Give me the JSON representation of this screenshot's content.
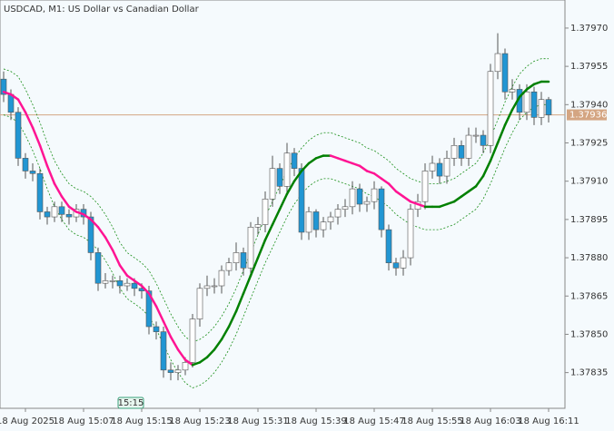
{
  "chart_data": {
    "type": "candlestick",
    "title": "USDCAD, M1:  US Dollar vs Canadian Dollar",
    "time_marker": "15:15",
    "categories": [
      null,
      null,
      null,
      "18 Aug 2025",
      null,
      null,
      null,
      null,
      null,
      null,
      null,
      "18 Aug 15:07",
      null,
      null,
      null,
      null,
      null,
      null,
      null,
      "18 Aug 15:15",
      null,
      null,
      null,
      null,
      null,
      null,
      null,
      "18 Aug 15:23",
      null,
      null,
      null,
      null,
      null,
      null,
      null,
      "18 Aug 15:31",
      null,
      null,
      null,
      null,
      null,
      null,
      null,
      "18 Aug 15:39",
      null,
      null,
      null,
      null,
      null,
      null,
      null,
      "18 Aug 15:47",
      null,
      null,
      null,
      null,
      null,
      null,
      null,
      "18 Aug 15:55",
      null,
      null,
      null,
      null,
      null,
      null,
      null,
      "18 Aug 16:03",
      null,
      null,
      null,
      null,
      null,
      null,
      null,
      "18 Aug 16:11"
    ],
    "open": [
      1.3795,
      1.37944,
      1.37937,
      1.37919,
      1.37914,
      1.37913,
      1.37898,
      1.37896,
      1.379,
      1.37897,
      1.37896,
      1.37899,
      1.37896,
      1.37882,
      1.3787,
      1.37871,
      1.37871,
      1.37869,
      1.3787,
      1.37868,
      1.37867,
      1.37853,
      1.37851,
      1.37836,
      1.37835,
      1.37836,
      1.37839,
      1.37856,
      1.37868,
      1.37869,
      1.37869,
      1.37875,
      1.37878,
      1.37882,
      1.37876,
      1.37892,
      1.37893,
      1.37903,
      1.37915,
      1.37908,
      1.37921,
      1.37915,
      1.3789,
      1.37898,
      1.37891,
      1.37894,
      1.37896,
      1.37899,
      1.379,
      1.37907,
      1.37901,
      1.37902,
      1.37907,
      1.37891,
      1.37878,
      1.37876,
      1.3788,
      1.37899,
      1.37902,
      1.37914,
      1.37917,
      1.37912,
      1.37919,
      1.37924,
      1.37919,
      1.37928,
      1.37928,
      1.37924,
      1.37953,
      1.3796,
      1.37945,
      1.37946,
      1.37937,
      1.37945,
      1.37935,
      1.37942
    ],
    "high": [
      1.37953,
      1.37946,
      1.37939,
      1.37921,
      1.37917,
      1.37915,
      1.379,
      1.37902,
      1.37902,
      1.37899,
      1.37901,
      1.37901,
      1.37898,
      1.37884,
      1.37874,
      1.37873,
      1.37873,
      1.37872,
      1.37872,
      1.3787,
      1.37869,
      1.37855,
      1.37853,
      1.37839,
      1.37838,
      1.37841,
      1.37858,
      1.3787,
      1.37873,
      1.37872,
      1.37877,
      1.3788,
      1.37886,
      1.37884,
      1.37894,
      1.37896,
      1.37906,
      1.3792,
      1.37917,
      1.37925,
      1.37923,
      1.37917,
      1.379,
      1.37899,
      1.37896,
      1.37898,
      1.37901,
      1.37903,
      1.3791,
      1.37909,
      1.37904,
      1.3791,
      1.37908,
      1.37893,
      1.3788,
      1.37883,
      1.37901,
      1.37905,
      1.37917,
      1.3792,
      1.37919,
      1.37922,
      1.37927,
      1.37926,
      1.37931,
      1.37931,
      1.3793,
      1.37956,
      1.37968,
      1.37962,
      1.3795,
      1.37948,
      1.37948,
      1.37947,
      1.37945,
      1.37943
    ],
    "low": [
      1.37941,
      1.37934,
      1.37916,
      1.37911,
      1.3791,
      1.37895,
      1.37893,
      1.37894,
      1.37894,
      1.37893,
      1.37894,
      1.37893,
      1.37879,
      1.37867,
      1.37868,
      1.37868,
      1.37866,
      1.37867,
      1.37865,
      1.37864,
      1.3785,
      1.37848,
      1.37833,
      1.37832,
      1.37832,
      1.37834,
      1.37837,
      1.37853,
      1.37865,
      1.37866,
      1.37866,
      1.37873,
      1.37875,
      1.37873,
      1.37873,
      1.37889,
      1.3789,
      1.379,
      1.37905,
      1.37905,
      1.37912,
      1.37887,
      1.37887,
      1.37888,
      1.37888,
      1.37891,
      1.37893,
      1.37896,
      1.37897,
      1.37898,
      1.37898,
      1.37899,
      1.37888,
      1.37875,
      1.37873,
      1.37873,
      1.37877,
      1.37896,
      1.37899,
      1.37911,
      1.37909,
      1.37909,
      1.37916,
      1.37916,
      1.37916,
      1.37925,
      1.37921,
      1.37921,
      1.3795,
      1.37942,
      1.37942,
      1.37934,
      1.37934,
      1.37932,
      1.37932,
      1.37933
    ],
    "close": [
      1.37944,
      1.37937,
      1.37919,
      1.37914,
      1.37913,
      1.37898,
      1.37896,
      1.379,
      1.37897,
      1.37896,
      1.37899,
      1.37896,
      1.37882,
      1.3787,
      1.37871,
      1.37871,
      1.37869,
      1.3787,
      1.37868,
      1.37867,
      1.37853,
      1.37851,
      1.37836,
      1.37835,
      1.37836,
      1.37839,
      1.37856,
      1.37868,
      1.37869,
      1.37869,
      1.37875,
      1.37878,
      1.37882,
      1.37876,
      1.37892,
      1.37893,
      1.37903,
      1.37915,
      1.37908,
      1.37921,
      1.37915,
      1.3789,
      1.37898,
      1.37891,
      1.37894,
      1.37896,
      1.37899,
      1.379,
      1.37907,
      1.37901,
      1.37902,
      1.37907,
      1.37891,
      1.37878,
      1.37876,
      1.3788,
      1.37899,
      1.37902,
      1.37914,
      1.37917,
      1.37912,
      1.37919,
      1.37924,
      1.37919,
      1.37928,
      1.37928,
      1.37924,
      1.37953,
      1.3796,
      1.37945,
      1.37946,
      1.37937,
      1.37945,
      1.37935,
      1.37942,
      1.37936
    ],
    "middle": [
      1.37945,
      1.37944,
      1.37942,
      1.37937,
      1.37931,
      1.37924,
      1.37916,
      1.37909,
      1.37904,
      1.379,
      1.37898,
      1.37897,
      1.37895,
      1.37892,
      1.37888,
      1.37883,
      1.37877,
      1.37873,
      1.37871,
      1.37869,
      1.37866,
      1.37861,
      1.37855,
      1.37849,
      1.37844,
      1.3784,
      1.37838,
      1.37839,
      1.37841,
      1.37844,
      1.37848,
      1.37853,
      1.37859,
      1.37866,
      1.37873,
      1.3788,
      1.37887,
      1.37893,
      1.37899,
      1.37905,
      1.3791,
      1.37914,
      1.37917,
      1.37919,
      1.3792,
      1.3792,
      1.37919,
      1.37918,
      1.37917,
      1.37916,
      1.37914,
      1.37913,
      1.37911,
      1.37909,
      1.37906,
      1.37904,
      1.37902,
      1.37901,
      1.379,
      1.379,
      1.379,
      1.37901,
      1.37902,
      1.37904,
      1.37906,
      1.37908,
      1.37912,
      1.37918,
      1.37925,
      1.37932,
      1.37938,
      1.37943,
      1.37946,
      1.37948,
      1.37949,
      1.37949
    ],
    "upper": [
      1.37954,
      1.37953,
      1.37951,
      1.37946,
      1.3794,
      1.37933,
      1.37925,
      1.37918,
      1.37913,
      1.37909,
      1.37907,
      1.37906,
      1.37904,
      1.37901,
      1.37897,
      1.37892,
      1.37886,
      1.37882,
      1.3788,
      1.37878,
      1.37875,
      1.3787,
      1.37864,
      1.37858,
      1.37853,
      1.37849,
      1.37847,
      1.37848,
      1.3785,
      1.37853,
      1.37857,
      1.37862,
      1.37868,
      1.37875,
      1.37882,
      1.37889,
      1.37896,
      1.37902,
      1.37908,
      1.37914,
      1.37919,
      1.37923,
      1.37926,
      1.37928,
      1.37929,
      1.37929,
      1.37928,
      1.37927,
      1.37926,
      1.37925,
      1.37923,
      1.37922,
      1.3792,
      1.37918,
      1.37915,
      1.37913,
      1.37911,
      1.3791,
      1.37909,
      1.37909,
      1.37909,
      1.3791,
      1.37911,
      1.37913,
      1.37915,
      1.37917,
      1.37921,
      1.37927,
      1.37934,
      1.37941,
      1.37947,
      1.37952,
      1.37955,
      1.37957,
      1.37958,
      1.37958
    ],
    "lower": [
      1.37936,
      1.37935,
      1.37933,
      1.37928,
      1.37922,
      1.37915,
      1.37907,
      1.379,
      1.37895,
      1.37891,
      1.37889,
      1.37888,
      1.37886,
      1.37883,
      1.37879,
      1.37874,
      1.37868,
      1.37864,
      1.37862,
      1.3786,
      1.37857,
      1.37852,
      1.37846,
      1.3784,
      1.37835,
      1.37831,
      1.37829,
      1.3783,
      1.37832,
      1.37835,
      1.37839,
      1.37844,
      1.3785,
      1.37857,
      1.37864,
      1.37871,
      1.37878,
      1.37884,
      1.3789,
      1.37896,
      1.37901,
      1.37905,
      1.37908,
      1.3791,
      1.37911,
      1.37911,
      1.3791,
      1.37909,
      1.37908,
      1.37907,
      1.37905,
      1.37904,
      1.37902,
      1.379,
      1.37897,
      1.37895,
      1.37893,
      1.37892,
      1.37891,
      1.37891,
      1.37891,
      1.37892,
      1.37893,
      1.37895,
      1.37897,
      1.37899,
      1.37903,
      1.37909,
      1.37916,
      1.37923,
      1.37929,
      1.37934,
      1.37937,
      1.37939,
      1.3794,
      1.3794
    ],
    "current_price": 1.37936,
    "ylim": [
      1.37821,
      1.37981
    ],
    "yticks": [
      {
        "value": 1.3797,
        "label": "1.37970"
      },
      1.37955,
      {
        "value": 1.3794,
        "label": "1.37940"
      },
      1.37925,
      {
        "value": 1.3791,
        "label": "1.37910"
      },
      1.37895,
      {
        "value": 1.3788,
        "label": "1.37880"
      },
      1.37865,
      {
        "value": 1.3785,
        "label": "1.37850"
      },
      1.37835
    ],
    "up_color": "#ffffff",
    "down_color": "#2196d3",
    "wick_color": "#555555",
    "rising_color": "#008000",
    "falling_color": "#ff1493",
    "band_color": "#1a8f1a",
    "price_line_color": "#d4a582"
  }
}
